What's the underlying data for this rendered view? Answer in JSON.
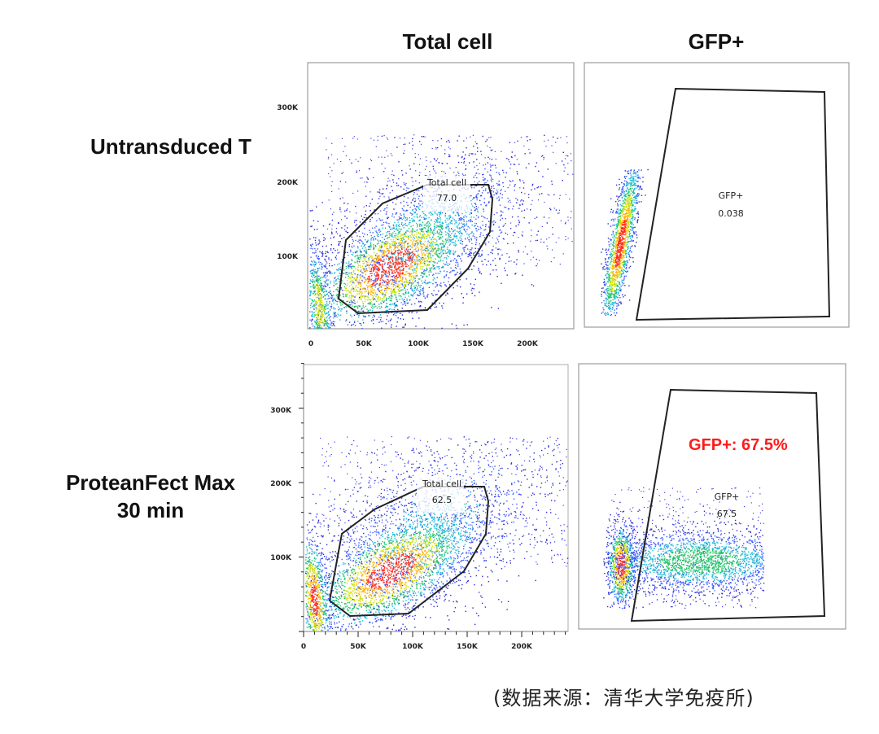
{
  "header": {
    "col1": "Total cell",
    "col2": "GFP+"
  },
  "rows": [
    {
      "label_line1": "Untransduced T",
      "label_line2": ""
    },
    {
      "label_line1": "ProteanFect Max",
      "label_line2": "30 min"
    }
  ],
  "callout": {
    "text": "GFP+: 67.5%",
    "color": "#ff1a1a"
  },
  "source": "(数据来源：清华大学免疫所)",
  "chart_data": [
    {
      "type": "scatter",
      "panel": "Untransduced T — Total cell",
      "x_ticks": [
        "0",
        "50K",
        "100K",
        "150K",
        "200K"
      ],
      "y_ticks": [
        "100K",
        "200K",
        "300K"
      ],
      "xlim": [
        0,
        250000
      ],
      "ylim": [
        0,
        350000
      ],
      "gate": {
        "name": "Total cell",
        "value": "77.0"
      }
    },
    {
      "type": "scatter",
      "panel": "Untransduced T — GFP+",
      "gate": {
        "name": "GFP+",
        "value": "0.038"
      }
    },
    {
      "type": "scatter",
      "panel": "ProteanFect Max 30 min — Total cell",
      "x_ticks": [
        "0",
        "50K",
        "100K",
        "150K",
        "200K"
      ],
      "y_ticks": [
        "100K",
        "200K",
        "300K"
      ],
      "xlim": [
        0,
        250000
      ],
      "ylim": [
        0,
        350000
      ],
      "gate": {
        "name": "Total cell",
        "value": "62.5"
      }
    },
    {
      "type": "scatter",
      "panel": "ProteanFect Max 30 min — GFP+",
      "gate": {
        "name": "GFP+",
        "value": "67.5"
      }
    }
  ]
}
